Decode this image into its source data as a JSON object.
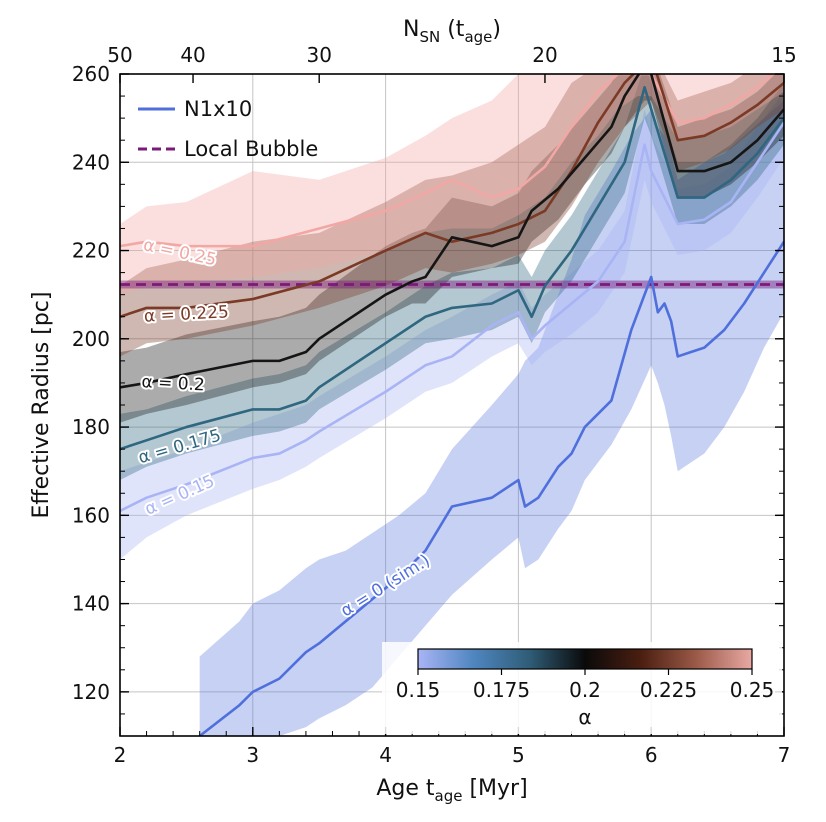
{
  "chart_data": {
    "type": "line",
    "xlabel": "Age t",
    "xlabel_sub": "age",
    "xlabel_unit": " [Myr]",
    "ylabel": "Effective Radius [pc]",
    "top_label": "N",
    "top_label_sub1": "SN",
    "top_label_mid": " (t",
    "top_label_sub2": "age",
    "top_label_end": ")",
    "xlim": [
      2,
      7
    ],
    "ylim": [
      110,
      260
    ],
    "x_ticks": [
      2,
      3,
      4,
      5,
      6,
      7
    ],
    "x_tick_labels": [
      "2",
      "3",
      "4",
      "5",
      "6",
      "7"
    ],
    "y_ticks": [
      120,
      140,
      160,
      180,
      200,
      220,
      240,
      260
    ],
    "y_tick_labels": [
      "120",
      "140",
      "160",
      "180",
      "200",
      "220",
      "240",
      "260"
    ],
    "top_ticks": [
      {
        "age": 2.0,
        "label": "50"
      },
      {
        "age": 2.55,
        "label": "40"
      },
      {
        "age": 3.5,
        "label": "30"
      },
      {
        "age": 5.2,
        "label": "20"
      },
      {
        "age": 7.0,
        "label": "15"
      }
    ],
    "grid": true,
    "legend": {
      "position": "top-left",
      "entries": [
        {
          "label": "N1x10",
          "color": "#4f6fdc",
          "style": "solid"
        },
        {
          "label": "Local Bubble",
          "color": "#7b1a7b",
          "style": "dashed"
        }
      ]
    },
    "local_bubble": {
      "value": 212.3,
      "band": [
        211.4,
        213.2
      ],
      "color": "#7b1a7b"
    },
    "colorbar": {
      "label": "α",
      "ticks": [
        {
          "value": 0.15,
          "label": "0.15"
        },
        {
          "value": 0.175,
          "label": "0.175"
        },
        {
          "value": 0.2,
          "label": "0.2"
        },
        {
          "value": 0.225,
          "label": "0.225"
        },
        {
          "value": 0.25,
          "label": "0.25"
        }
      ],
      "range": [
        0.15,
        0.25
      ],
      "stops": [
        "#a9b4f5",
        "#4f86c0",
        "#2f5d77",
        "#0a0a0a",
        "#4a1e10",
        "#9b5a48",
        "#e9a9a4"
      ]
    },
    "series": [
      {
        "alpha": 0.25,
        "label": "α = 0.25",
        "color": "#f2a7a4",
        "x": [
          2.0,
          2.2,
          2.5,
          3.0,
          3.5,
          4.0,
          4.3,
          4.5,
          4.8,
          5.0,
          5.2,
          5.4,
          5.6,
          5.75,
          5.9,
          6.0,
          6.2,
          6.4,
          6.6,
          6.8,
          7.0
        ],
        "values": [
          221,
          222,
          221,
          221,
          225,
          229,
          233,
          236,
          232,
          234,
          239,
          248,
          256,
          260,
          260,
          260,
          249,
          250,
          253,
          257,
          262
        ],
        "band_lo": [
          210,
          212,
          213,
          214,
          216,
          220,
          224,
          225,
          225,
          228,
          232,
          240,
          246,
          252,
          255,
          255,
          245,
          246,
          248,
          252,
          256
        ],
        "band_hi": [
          226,
          230,
          231,
          238,
          236,
          241,
          246,
          250,
          254,
          260,
          264,
          266,
          266,
          266,
          266,
          266,
          262,
          264,
          266,
          266,
          266
        ],
        "label_pos": [
          2.45,
          219.5
        ],
        "label_angle": 12
      },
      {
        "alpha": 0.225,
        "label": "α = 0.225",
        "color": "#7a3a26",
        "x": [
          2.0,
          2.2,
          2.5,
          3.0,
          3.5,
          4.0,
          4.3,
          4.5,
          4.8,
          5.0,
          5.2,
          5.4,
          5.6,
          5.8,
          6.0,
          6.2,
          6.4,
          6.6,
          6.8,
          7.0
        ],
        "values": [
          205,
          207,
          207,
          209,
          213,
          220,
          224,
          222,
          224,
          226,
          229,
          238,
          249,
          258,
          264,
          245,
          246,
          249,
          253,
          258
        ],
        "band_lo": [
          196,
          199,
          200,
          203,
          207,
          212,
          216,
          215,
          217,
          219,
          222,
          230,
          240,
          248,
          254,
          238,
          240,
          243,
          248,
          252
        ],
        "band_hi": [
          212,
          216,
          218,
          222,
          224,
          231,
          236,
          237,
          240,
          244,
          248,
          258,
          262,
          264,
          266,
          254,
          256,
          258,
          262,
          266
        ],
        "label_pos": [
          2.5,
          205.5
        ],
        "label_angle": -3
      },
      {
        "alpha": 0.2,
        "label": "α = 0.2",
        "color": "#151515",
        "x": [
          2.0,
          2.2,
          2.5,
          3.0,
          3.2,
          3.4,
          3.5,
          4.0,
          4.2,
          4.3,
          4.5,
          4.8,
          5.0,
          5.1,
          5.3,
          5.5,
          5.7,
          5.8,
          5.95,
          6.0,
          6.2,
          6.4,
          6.6,
          6.8,
          7.0
        ],
        "values": [
          189,
          190,
          192,
          195,
          195,
          197,
          200,
          210,
          213,
          214,
          223,
          221,
          223,
          229,
          234,
          241,
          248,
          255,
          262,
          260,
          238,
          238,
          240,
          245,
          252
        ],
        "band_lo": [
          181,
          183,
          185,
          189,
          190,
          192,
          195,
          205,
          208,
          208,
          214,
          216,
          217,
          222,
          227,
          235,
          242,
          248,
          254,
          254,
          232,
          232,
          235,
          240,
          246
        ],
        "band_hi": [
          197,
          198,
          201,
          204,
          205,
          207,
          210,
          221,
          224,
          225,
          232,
          230,
          233,
          238,
          244,
          251,
          258,
          264,
          266,
          266,
          248,
          250,
          252,
          256,
          262
        ],
        "label_pos": [
          2.4,
          189.8
        ],
        "label_angle": 3
      },
      {
        "alpha": 0.175,
        "label": "α = 0.175",
        "color": "#2f6680",
        "x": [
          2.0,
          2.2,
          2.5,
          3.0,
          3.2,
          3.4,
          3.5,
          4.0,
          4.3,
          4.5,
          4.8,
          5.0,
          5.1,
          5.2,
          5.4,
          5.6,
          5.8,
          5.95,
          6.0,
          6.2,
          6.4,
          6.6,
          6.8,
          7.0
        ],
        "values": [
          175,
          177,
          180,
          184,
          184,
          186,
          189,
          199,
          205,
          207,
          208,
          211,
          205,
          212,
          220,
          230,
          240,
          257,
          252,
          232,
          232,
          236,
          242,
          250
        ],
        "band_lo": [
          168,
          171,
          174,
          178,
          179,
          181,
          184,
          193,
          199,
          200,
          202,
          205,
          199,
          206,
          213,
          223,
          233,
          250,
          246,
          226,
          226,
          230,
          236,
          244
        ],
        "band_hi": [
          183,
          184,
          187,
          191,
          192,
          194,
          197,
          206,
          212,
          215,
          216,
          219,
          214,
          220,
          228,
          238,
          248,
          262,
          258,
          240,
          240,
          244,
          250,
          258
        ],
        "label_pos": [
          2.45,
          175.5
        ],
        "label_angle": -16
      },
      {
        "alpha": 0.15,
        "label": "α = 0.15",
        "color": "#a9b4f5",
        "x": [
          2.0,
          2.2,
          2.5,
          3.0,
          3.2,
          3.4,
          3.5,
          4.0,
          4.3,
          4.5,
          4.8,
          5.0,
          5.1,
          5.2,
          5.4,
          5.6,
          5.8,
          5.95,
          6.0,
          6.2,
          6.4,
          6.6,
          6.8,
          7.0
        ],
        "values": [
          161,
          164,
          167,
          173,
          174,
          177,
          179,
          188,
          194,
          196,
          203,
          206,
          200,
          203,
          208,
          213,
          222,
          244,
          238,
          226,
          227,
          231,
          240,
          249
        ],
        "band_lo": [
          150,
          155,
          160,
          166,
          168,
          171,
          173,
          182,
          188,
          190,
          196,
          199,
          194,
          197,
          201,
          206,
          215,
          236,
          231,
          219,
          220,
          224,
          232,
          241
        ],
        "band_hi": [
          170,
          172,
          175,
          181,
          183,
          185,
          187,
          196,
          202,
          205,
          210,
          213,
          207,
          210,
          215,
          220,
          229,
          252,
          246,
          234,
          235,
          239,
          248,
          256
        ],
        "label_pos": [
          2.45,
          164.5
        ],
        "label_angle": -24
      },
      {
        "alpha": 0,
        "label": "α = 0 (sim.)",
        "color": "#4f6fdc",
        "name": "N1x10",
        "x": [
          2.6,
          2.9,
          3.0,
          3.2,
          3.4,
          3.5,
          3.7,
          3.9,
          4.1,
          4.3,
          4.5,
          4.8,
          5.0,
          5.05,
          5.15,
          5.3,
          5.4,
          5.5,
          5.7,
          5.85,
          6.0,
          6.05,
          6.1,
          6.15,
          6.2,
          6.3,
          6.4,
          6.55,
          6.7,
          6.85,
          7.0
        ],
        "values": [
          110,
          117,
          120,
          123,
          129,
          131,
          136,
          141,
          146,
          152,
          162,
          164,
          168,
          162,
          164,
          171,
          174,
          180,
          186,
          202,
          214,
          206,
          208,
          204,
          196,
          197,
          198,
          202,
          208,
          215,
          222
        ],
        "band_lo": [
          110,
          110,
          110,
          110,
          112,
          114,
          117,
          121,
          128,
          135,
          142,
          150,
          155,
          148,
          150,
          157,
          161,
          168,
          176,
          184,
          194,
          190,
          185,
          178,
          170,
          172,
          174,
          180,
          188,
          198,
          206
        ],
        "band_hi": [
          128,
          136,
          140,
          143,
          148,
          150,
          152,
          156,
          160,
          165,
          175,
          185,
          192,
          195,
          198,
          210,
          218,
          228,
          238,
          246,
          252,
          248,
          246,
          242,
          236,
          238,
          240,
          242,
          246,
          250,
          254
        ],
        "label_pos": [
          4.0,
          144
        ],
        "label_angle": -32
      }
    ]
  }
}
